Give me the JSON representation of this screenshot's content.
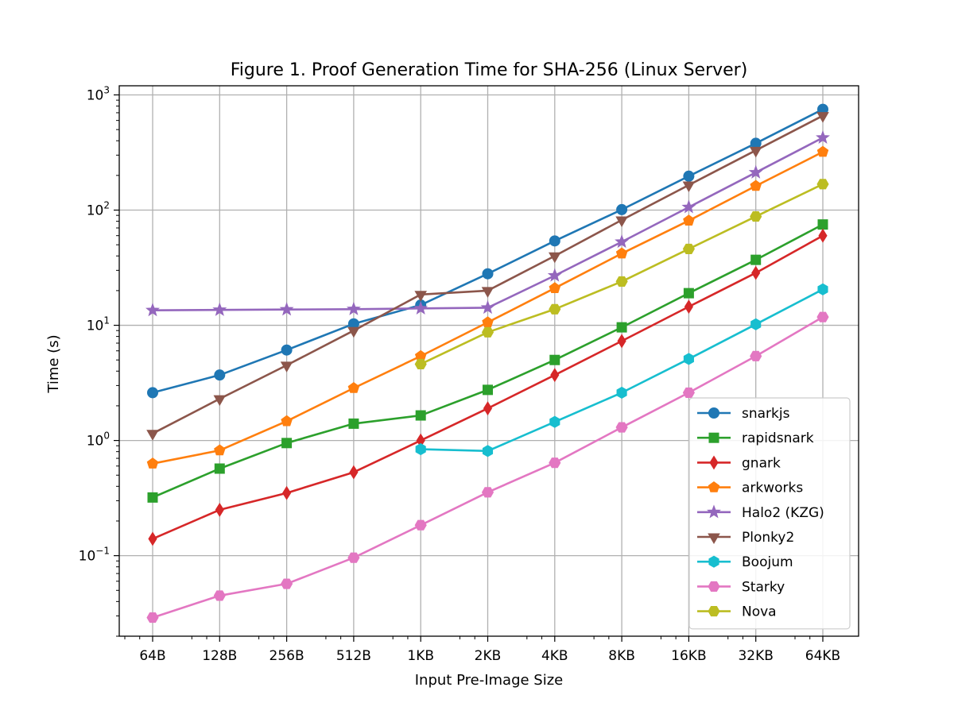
{
  "chart_data": {
    "type": "line",
    "title": "Figure 1. Proof Generation Time for SHA-256 (Linux Server)",
    "xlabel": "Input Pre-Image Size",
    "ylabel": "Time (s)",
    "yscale": "log",
    "ylim": [
      0.02,
      1200
    ],
    "grid": true,
    "legend_position": "lower-right",
    "categories": [
      "64B",
      "128B",
      "256B",
      "512B",
      "1KB",
      "2KB",
      "4KB",
      "8KB",
      "16KB",
      "32KB",
      "64KB"
    ],
    "y_ticks": [
      {
        "value": 0.1,
        "base": "10",
        "exp": "−1"
      },
      {
        "value": 1,
        "base": "10",
        "exp": "0"
      },
      {
        "value": 10,
        "base": "10",
        "exp": "1"
      },
      {
        "value": 100,
        "base": "10",
        "exp": "2"
      },
      {
        "value": 1000,
        "base": "10",
        "exp": "3"
      }
    ],
    "series": [
      {
        "name": "snarkjs",
        "color": "#1f77b4",
        "marker": "circle",
        "values": [
          2.6,
          3.7,
          6.1,
          10.3,
          15.0,
          28.0,
          54.0,
          101.0,
          197.0,
          380.0,
          750.0
        ]
      },
      {
        "name": "rapidsnark",
        "color": "#2ca02c",
        "marker": "square",
        "values": [
          0.32,
          0.57,
          0.95,
          1.4,
          1.65,
          2.75,
          5.0,
          9.6,
          19.0,
          37.0,
          75.0
        ]
      },
      {
        "name": "gnark",
        "color": "#d62728",
        "marker": "thin_diamond",
        "values": [
          0.14,
          0.25,
          0.35,
          0.53,
          1.0,
          1.9,
          3.7,
          7.3,
          14.5,
          28.5,
          60.0
        ]
      },
      {
        "name": "arkworks",
        "color": "#ff7f0e",
        "marker": "pentagon",
        "values": [
          0.63,
          0.82,
          1.47,
          2.85,
          5.4,
          10.6,
          21.0,
          42.0,
          81.0,
          162.0,
          320.0
        ]
      },
      {
        "name": "Halo2 (KZG)",
        "color": "#9467bd",
        "marker": "star",
        "values": [
          13.5,
          13.6,
          13.7,
          13.8,
          14.0,
          14.2,
          27.0,
          53.0,
          106.0,
          212.0,
          425.0
        ]
      },
      {
        "name": "Plonky2",
        "color": "#8c564b",
        "marker": "triangle_down",
        "values": [
          1.15,
          2.3,
          4.5,
          9.0,
          18.5,
          20.0,
          40.0,
          82.0,
          165.0,
          330.0,
          660.0
        ]
      },
      {
        "name": "Boojum",
        "color": "#17becf",
        "marker": "hexagon",
        "values": [
          null,
          null,
          null,
          null,
          0.84,
          0.81,
          1.45,
          2.6,
          5.1,
          10.2,
          20.5
        ]
      },
      {
        "name": "Starky",
        "color": "#e377c2",
        "marker": "hexagon_flat",
        "values": [
          0.029,
          0.045,
          0.057,
          0.096,
          0.184,
          0.355,
          0.64,
          1.3,
          2.6,
          5.4,
          11.8
        ]
      },
      {
        "name": "Nova",
        "color": "#bcbd22",
        "marker": "hexagon_flat",
        "values": [
          null,
          null,
          null,
          null,
          4.6,
          8.7,
          13.8,
          24.0,
          46.0,
          88.0,
          168.0
        ]
      }
    ]
  }
}
